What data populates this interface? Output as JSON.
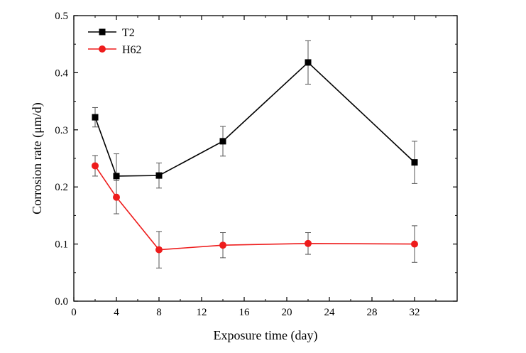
{
  "chart_data": {
    "type": "line",
    "xlabel": "Exposure time (day)",
    "ylabel": "Corrosion rate (μm/d)",
    "xlim": [
      0,
      36
    ],
    "ylim": [
      0,
      0.5
    ],
    "xticks": [
      "0",
      "4",
      "8",
      "12",
      "16",
      "20",
      "24",
      "28",
      "32"
    ],
    "yticks": [
      "0.0",
      "0.1",
      "0.2",
      "0.3",
      "0.4",
      "0.5"
    ],
    "grid": false,
    "legend_position": "top-left",
    "series": [
      {
        "name": "T2",
        "color": "#000000",
        "marker": "square",
        "x": [
          2,
          4,
          8,
          14,
          22,
          32
        ],
        "y": [
          0.322,
          0.219,
          0.22,
          0.28,
          0.418,
          0.243
        ],
        "err": [
          0.017,
          0.039,
          0.022,
          0.026,
          0.038,
          0.037
        ]
      },
      {
        "name": "H62",
        "color": "#ee1c1c",
        "marker": "circle",
        "x": [
          2,
          4,
          8,
          14,
          22,
          32
        ],
        "y": [
          0.237,
          0.182,
          0.09,
          0.098,
          0.101,
          0.1
        ],
        "err": [
          0.018,
          0.029,
          0.032,
          0.022,
          0.019,
          0.032
        ]
      }
    ]
  }
}
